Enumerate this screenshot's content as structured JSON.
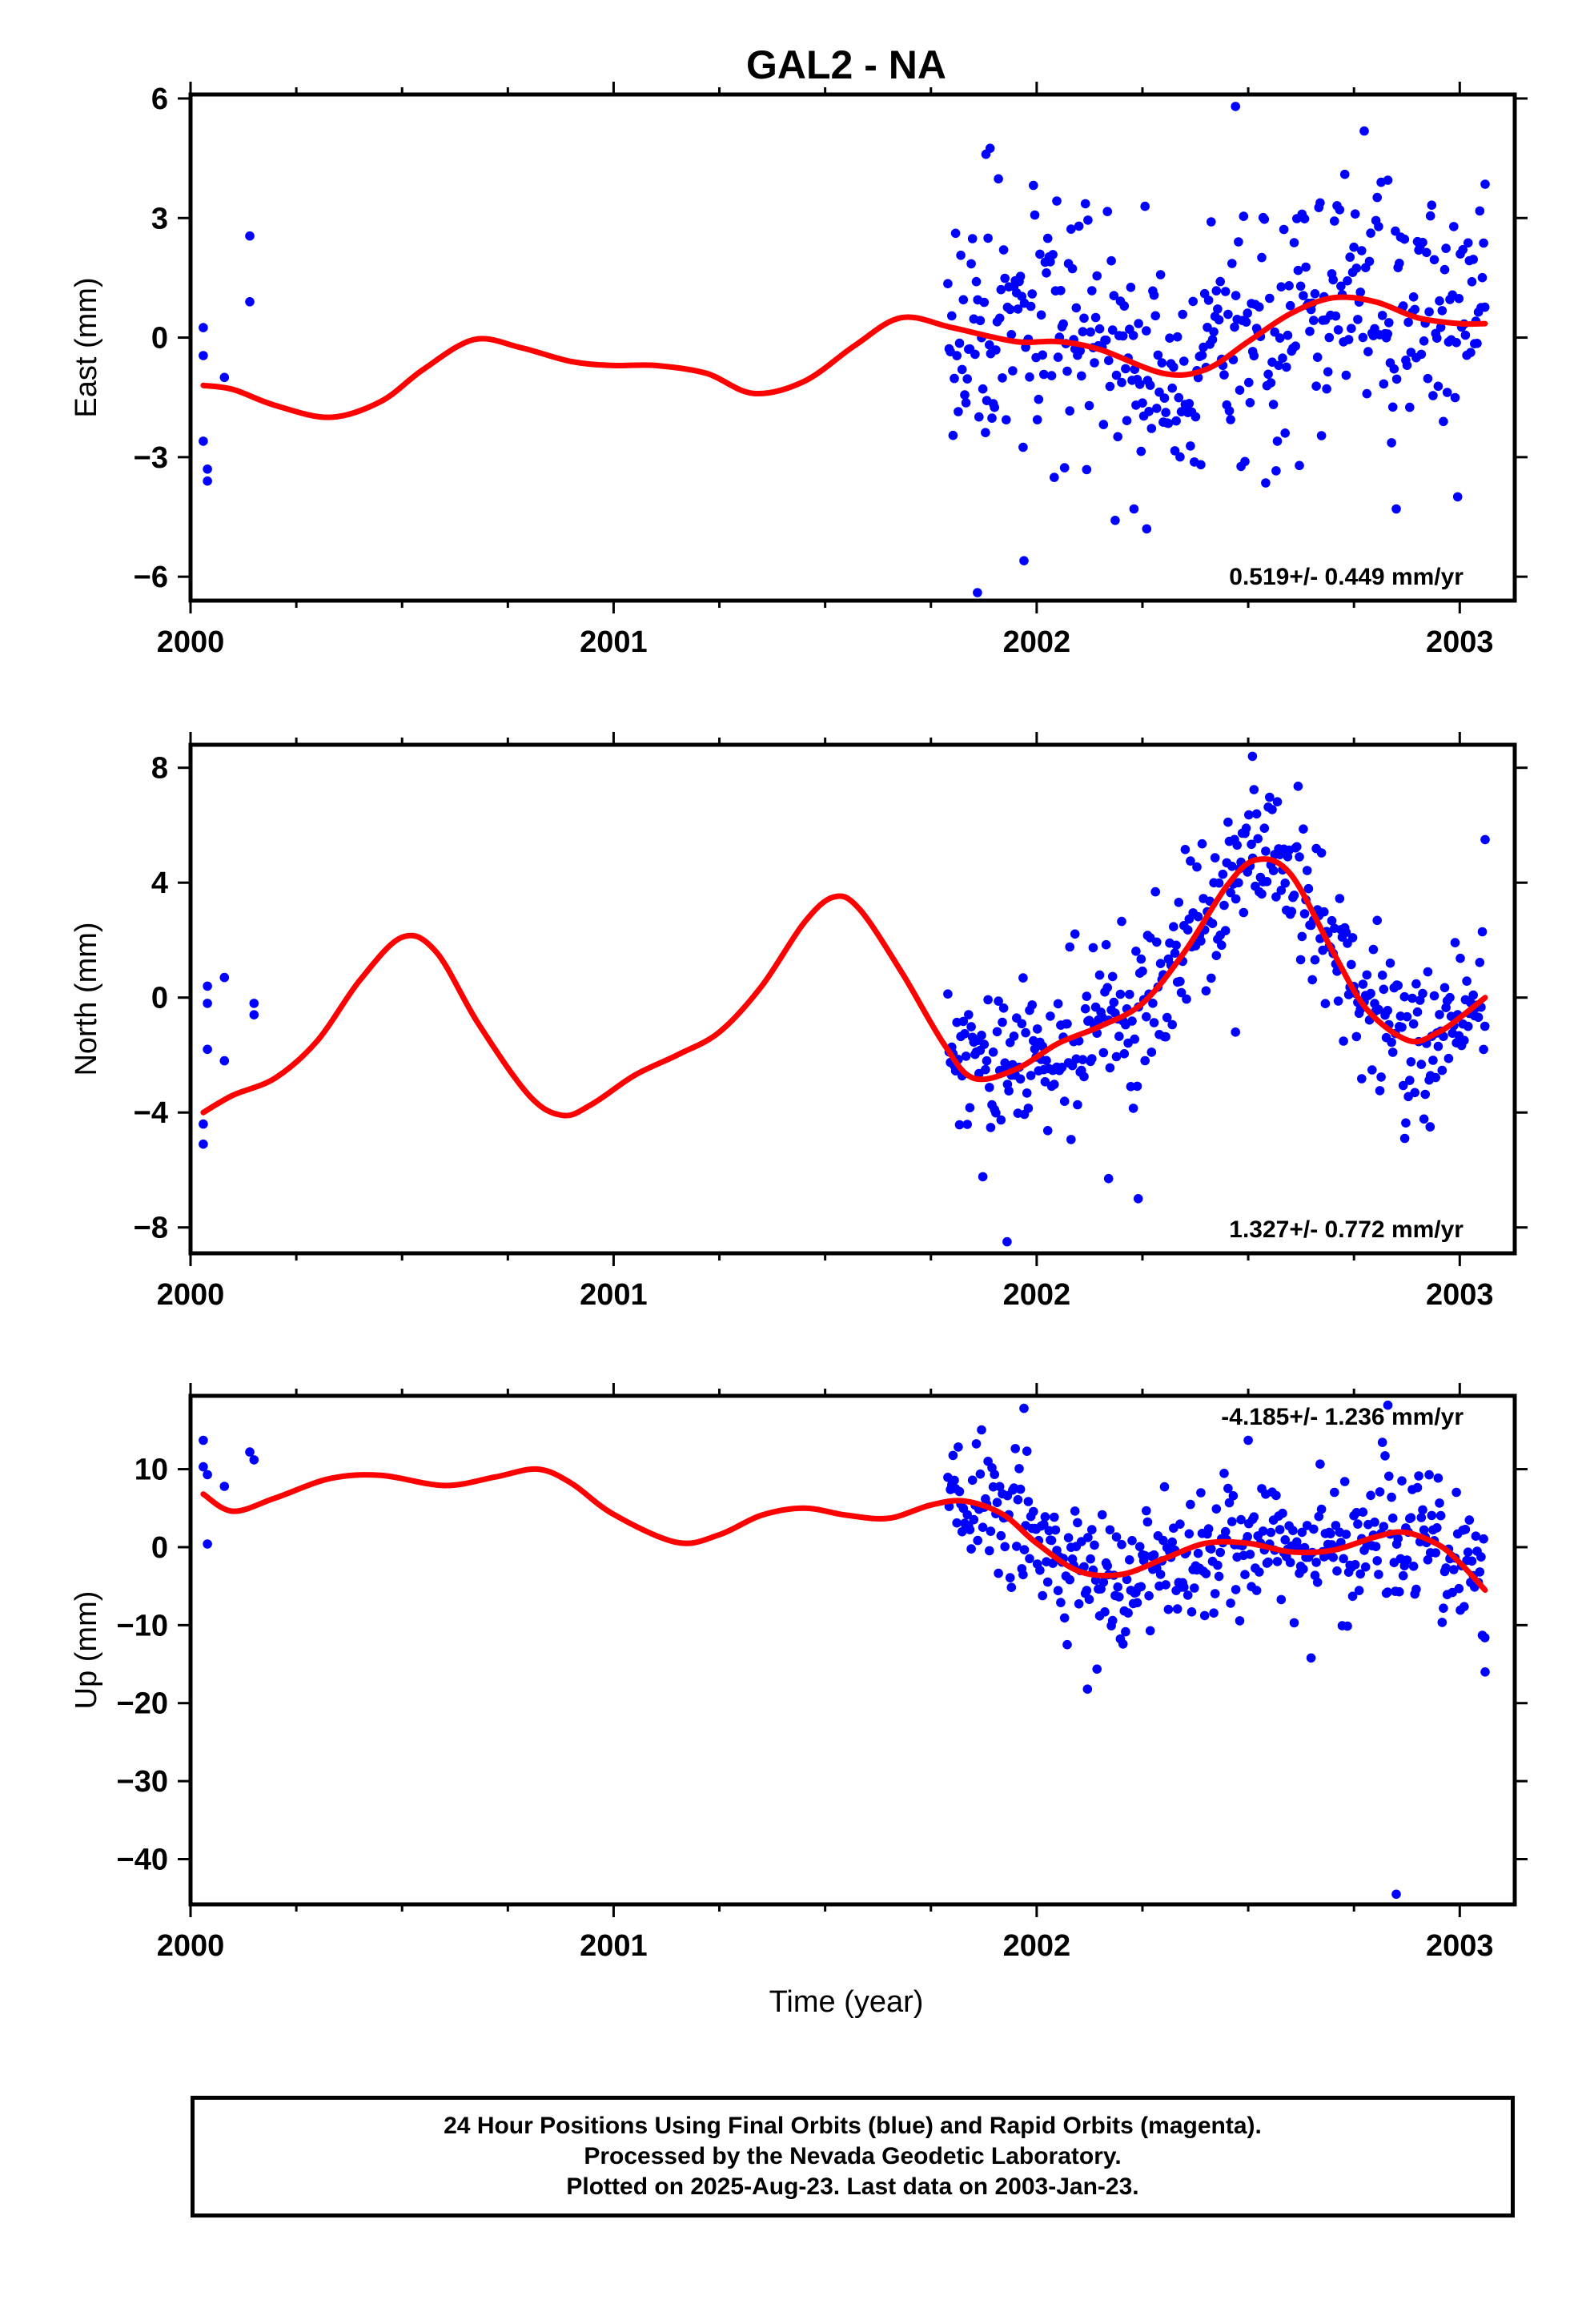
{
  "figure": {
    "title": "GAL2 - NA",
    "xlabel": "Time (year)"
  },
  "colors": {
    "data": "#0000ff",
    "model": "#ff0000",
    "frame": "#000000"
  },
  "chart_data": [
    {
      "type": "scatter",
      "ylabel": "East (mm)",
      "rate": "0.519+/- 0.449 mm/yr",
      "xlim": [
        2000.0,
        2003.13
      ],
      "ylim": [
        -6.6,
        6.1
      ],
      "xticks": [
        2000,
        2001,
        2002,
        2003
      ],
      "yticks": [
        6,
        3,
        0,
        -3,
        -6
      ],
      "yticklabels": [
        "6",
        "3",
        "0",
        "−3",
        "−6"
      ],
      "seed": 17,
      "sd": 1.5,
      "fit": [
        [
          2000.03,
          -1.2
        ],
        [
          2000.1,
          -1.3
        ],
        [
          2000.2,
          -1.7
        ],
        [
          2000.33,
          -2.0
        ],
        [
          2000.45,
          -1.6
        ],
        [
          2000.55,
          -0.8
        ],
        [
          2000.67,
          -0.05
        ],
        [
          2000.78,
          -0.25
        ],
        [
          2000.9,
          -0.6
        ],
        [
          2001.0,
          -0.7
        ],
        [
          2001.1,
          -0.7
        ],
        [
          2001.22,
          -0.9
        ],
        [
          2001.33,
          -1.4
        ],
        [
          2001.45,
          -1.1
        ],
        [
          2001.57,
          -0.2
        ],
        [
          2001.68,
          0.5
        ],
        [
          2001.8,
          0.25
        ],
        [
          2001.95,
          -0.1
        ],
        [
          2002.05,
          -0.1
        ],
        [
          2002.15,
          -0.3
        ],
        [
          2002.3,
          -0.9
        ],
        [
          2002.4,
          -0.8
        ],
        [
          2002.5,
          -0.1
        ],
        [
          2002.6,
          0.6
        ],
        [
          2002.7,
          1.0
        ],
        [
          2002.8,
          0.9
        ],
        [
          2002.9,
          0.5
        ],
        [
          2003.0,
          0.35
        ],
        [
          2003.06,
          0.35
        ]
      ],
      "outliers": [
        [
          2000.03,
          0.25
        ],
        [
          2000.03,
          -0.45
        ],
        [
          2000.03,
          -2.6
        ],
        [
          2000.04,
          -3.3
        ],
        [
          2000.04,
          -3.6
        ],
        [
          2000.08,
          -1.0
        ],
        [
          2000.14,
          2.55
        ],
        [
          2000.14,
          0.9
        ],
        [
          2001.86,
          -6.4
        ],
        [
          2001.88,
          4.6
        ],
        [
          2001.89,
          4.75
        ],
        [
          2001.97,
          -5.6
        ],
        [
          2002.47,
          5.8
        ],
        [
          2002.23,
          -4.3
        ],
        [
          2002.26,
          -4.8
        ],
        [
          2002.83,
          3.95
        ],
        [
          2002.85,
          -4.3
        ],
        [
          2003.06,
          3.85
        ]
      ]
    },
    {
      "type": "scatter",
      "ylabel": "North (mm)",
      "rate": "1.327+/- 0.772 mm/yr",
      "xlim": [
        2000.0,
        2003.13
      ],
      "ylim": [
        -8.9,
        8.8
      ],
      "xticks": [
        2000,
        2001,
        2002,
        2003
      ],
      "yticks": [
        8,
        4,
        0,
        -4,
        -8
      ],
      "yticklabels": [
        "8",
        "4",
        "0",
        "−4",
        "−8"
      ],
      "seed": 29,
      "sd": 1.35,
      "fit": [
        [
          2000.03,
          -4.0
        ],
        [
          2000.1,
          -3.4
        ],
        [
          2000.2,
          -2.8
        ],
        [
          2000.3,
          -1.5
        ],
        [
          2000.4,
          0.6
        ],
        [
          2000.5,
          2.1
        ],
        [
          2000.58,
          1.6
        ],
        [
          2000.68,
          -0.9
        ],
        [
          2000.8,
          -3.4
        ],
        [
          2000.88,
          -4.1
        ],
        [
          2000.95,
          -3.7
        ],
        [
          2001.05,
          -2.7
        ],
        [
          2001.15,
          -2.0
        ],
        [
          2001.25,
          -1.2
        ],
        [
          2001.35,
          0.4
        ],
        [
          2001.45,
          2.6
        ],
        [
          2001.52,
          3.5
        ],
        [
          2001.58,
          3.1
        ],
        [
          2001.68,
          0.9
        ],
        [
          2001.78,
          -1.6
        ],
        [
          2001.85,
          -2.8
        ],
        [
          2001.95,
          -2.5
        ],
        [
          2002.05,
          -1.6
        ],
        [
          2002.15,
          -1.0
        ],
        [
          2002.25,
          -0.2
        ],
        [
          2002.35,
          1.6
        ],
        [
          2002.45,
          3.9
        ],
        [
          2002.52,
          4.8
        ],
        [
          2002.6,
          4.3
        ],
        [
          2002.7,
          1.6
        ],
        [
          2002.78,
          -0.4
        ],
        [
          2002.88,
          -1.5
        ],
        [
          2002.95,
          -1.2
        ],
        [
          2003.0,
          -0.7
        ],
        [
          2003.06,
          0.0
        ]
      ],
      "outliers": [
        [
          2000.03,
          -4.4
        ],
        [
          2000.03,
          -5.1
        ],
        [
          2000.04,
          -1.8
        ],
        [
          2000.04,
          0.4
        ],
        [
          2000.04,
          -0.2
        ],
        [
          2000.08,
          0.7
        ],
        [
          2000.08,
          -2.2
        ],
        [
          2000.15,
          -0.2
        ],
        [
          2000.15,
          -0.6
        ],
        [
          2001.93,
          -8.5
        ],
        [
          2002.24,
          -7.0
        ],
        [
          2002.51,
          8.4
        ],
        [
          2002.17,
          -6.3
        ],
        [
          2002.47,
          -1.2
        ],
        [
          2002.87,
          -4.9
        ],
        [
          2002.93,
          -4.5
        ],
        [
          2003.06,
          5.5
        ]
      ]
    },
    {
      "type": "scatter",
      "ylabel": "Up (mm)",
      "rate": "-4.185+/- 1.236 mm/yr",
      "xlim": [
        2000.0,
        2003.13
      ],
      "ylim": [
        -45.8,
        19.4
      ],
      "xticks": [
        2000,
        2001,
        2002,
        2003
      ],
      "yticks": [
        10,
        0,
        -10,
        -20,
        -30,
        -40
      ],
      "yticklabels": [
        "10",
        "0",
        "−10",
        "−20",
        "−30",
        "−40"
      ],
      "seed": 43,
      "sd": 4.6,
      "fit": [
        [
          2000.03,
          6.8
        ],
        [
          2000.1,
          4.6
        ],
        [
          2000.2,
          6.3
        ],
        [
          2000.33,
          8.8
        ],
        [
          2000.45,
          9.2
        ],
        [
          2000.6,
          7.9
        ],
        [
          2000.72,
          9.0
        ],
        [
          2000.82,
          10.0
        ],
        [
          2000.9,
          8.2
        ],
        [
          2001.0,
          4.2
        ],
        [
          2001.15,
          0.6
        ],
        [
          2001.25,
          1.6
        ],
        [
          2001.35,
          4.1
        ],
        [
          2001.45,
          5.0
        ],
        [
          2001.55,
          4.1
        ],
        [
          2001.65,
          3.7
        ],
        [
          2001.75,
          5.4
        ],
        [
          2001.83,
          5.9
        ],
        [
          2001.92,
          4.2
        ],
        [
          2002.0,
          0.5
        ],
        [
          2002.1,
          -3.1
        ],
        [
          2002.2,
          -3.5
        ],
        [
          2002.3,
          -1.5
        ],
        [
          2002.4,
          0.5
        ],
        [
          2002.5,
          0.5
        ],
        [
          2002.6,
          -0.6
        ],
        [
          2002.7,
          -0.4
        ],
        [
          2002.8,
          1.3
        ],
        [
          2002.87,
          1.9
        ],
        [
          2002.95,
          0.3
        ],
        [
          2003.0,
          -2.0
        ],
        [
          2003.06,
          -5.5
        ]
      ],
      "outliers": [
        [
          2000.03,
          13.7
        ],
        [
          2000.03,
          10.3
        ],
        [
          2000.04,
          9.3
        ],
        [
          2000.04,
          0.4
        ],
        [
          2000.08,
          7.8
        ],
        [
          2000.14,
          12.2
        ],
        [
          2000.15,
          11.2
        ],
        [
          2002.85,
          -44.5
        ],
        [
          2001.97,
          17.8
        ],
        [
          2002.83,
          18.2
        ],
        [
          2002.12,
          -18.2
        ],
        [
          2003.06,
          -16.0
        ],
        [
          2002.5,
          13.7
        ]
      ]
    }
  ],
  "footer": {
    "line1": "24 Hour Positions Using Final Orbits (blue) and Rapid Orbits (magenta).",
    "line2": "Processed by the Nevada Geodetic Laboratory.",
    "line3": "Plotted on 2025-Aug-23. Last data on 2003-Jan-23."
  }
}
